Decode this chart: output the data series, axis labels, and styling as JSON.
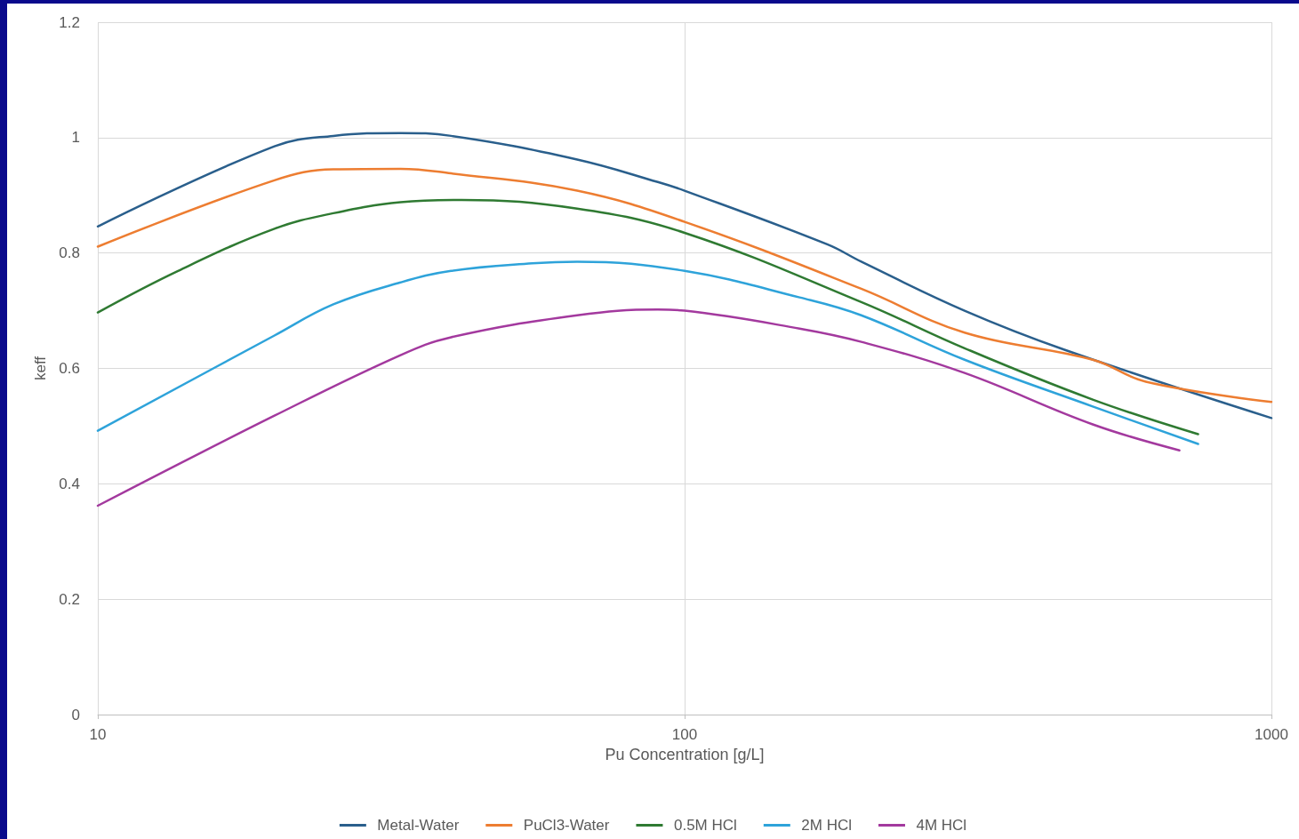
{
  "chart_data": {
    "type": "line",
    "xlabel": "Pu Concentration [g/L]",
    "ylabel": "keff",
    "log": "x",
    "xlim": [
      10,
      1000
    ],
    "xticks": [
      10,
      100,
      1000
    ],
    "ylim": [
      0,
      1.2
    ],
    "yticks": [
      0,
      0.2,
      0.4,
      0.6,
      0.8,
      1,
      1.2
    ],
    "grid": true,
    "legend": "bottom",
    "marker": "none",
    "line_style": "solid",
    "series": [
      {
        "name": "Metal-Water",
        "color": "#2a5f8c",
        "x": [
          10,
          20,
          25.2,
          32.8,
          40,
          65.6,
          90,
          100,
          175,
          200,
          300,
          445,
          1000
        ],
        "values": [
          0.846,
          0.985,
          1.003,
          1.008,
          1.003,
          0.962,
          0.923,
          0.908,
          0.815,
          0.785,
          0.7,
          0.632,
          0.514
        ]
      },
      {
        "name": "PuCl3-Water",
        "color": "#ed7d31",
        "x": [
          10,
          20,
          25.2,
          32.8,
          40,
          65.6,
          100,
          200,
          300,
          496,
          611,
          1000
        ],
        "values": [
          0.811,
          0.926,
          0.945,
          0.946,
          0.938,
          0.908,
          0.854,
          0.738,
          0.662,
          0.615,
          0.577,
          0.542
        ]
      },
      {
        "name": "0.5M HCl",
        "color": "#2f7a32",
        "x": [
          10,
          13.7,
          20,
          25.2,
          32.8,
          41.7,
          65.6,
          100,
          200,
          300,
          496,
          750
        ],
        "values": [
          0.697,
          0.769,
          0.842,
          0.869,
          0.888,
          0.892,
          0.877,
          0.835,
          0.715,
          0.635,
          0.546,
          0.486
        ]
      },
      {
        "name": "2M HCl",
        "color": "#2ea3da",
        "x": [
          10,
          20,
          25.2,
          32.8,
          40,
          55,
          65.6,
          100,
          157,
          200,
          300,
          496,
          750
        ],
        "values": [
          0.492,
          0.657,
          0.711,
          0.749,
          0.769,
          0.782,
          0.785,
          0.769,
          0.723,
          0.692,
          0.615,
          0.534,
          0.469
        ]
      },
      {
        "name": "4M HCl",
        "color": "#a3399e",
        "x": [
          10,
          20,
          32.8,
          40,
          65.6,
          90,
          100,
          157,
          200,
          300,
          496,
          697
        ],
        "values": [
          0.362,
          0.518,
          0.623,
          0.654,
          0.692,
          0.702,
          0.7,
          0.669,
          0.646,
          0.592,
          0.503,
          0.458
        ]
      }
    ]
  }
}
